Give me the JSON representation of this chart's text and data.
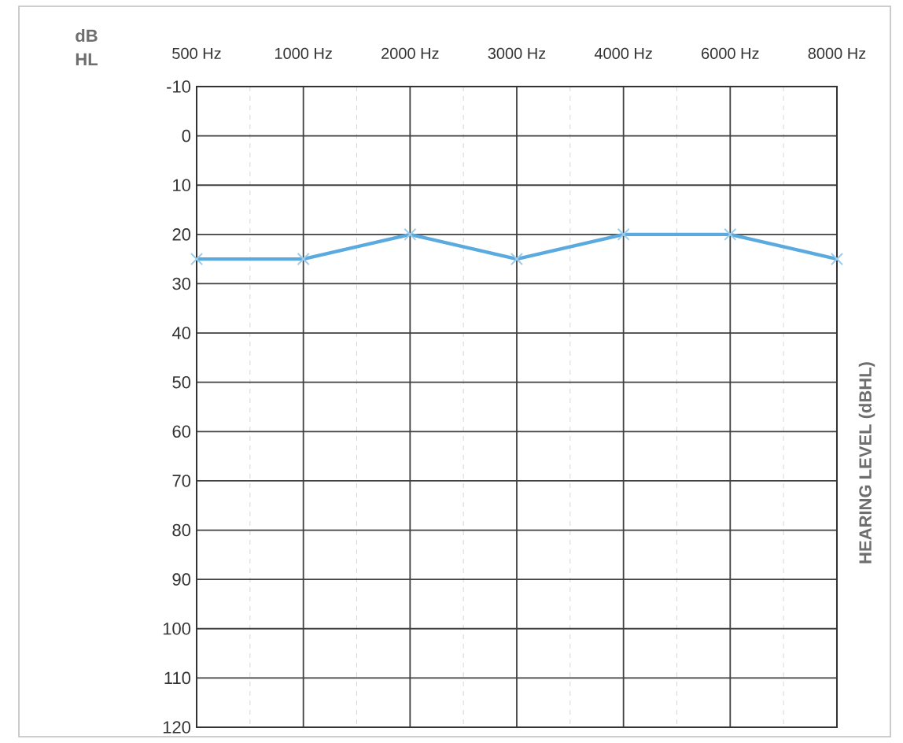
{
  "chart_data": {
    "type": "line",
    "ylabel": "dB HL",
    "y2label": "HEARING LEVEL (dBHL)",
    "categories": [
      "500 Hz",
      "1000 Hz",
      "2000 Hz",
      "3000 Hz",
      "4000 Hz",
      "6000 Hz",
      "8000 Hz"
    ],
    "series": [
      {
        "color": "#5aaae0",
        "values": [
          25,
          25,
          20,
          25,
          20,
          20,
          25
        ]
      }
    ],
    "ylim": [
      120,
      -10
    ],
    "yticks": [
      -10,
      0,
      10,
      20,
      30,
      40,
      50,
      60,
      70,
      80,
      90,
      100,
      110,
      120
    ],
    "grid": true,
    "marker": "cross",
    "line_style": "solid"
  }
}
